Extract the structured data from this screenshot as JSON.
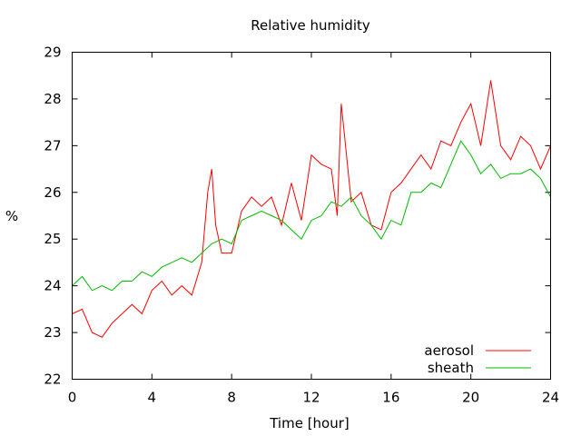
{
  "chart_data": {
    "type": "line",
    "title": "Relative humidity",
    "xlabel": "Time [hour]",
    "ylabel": "%",
    "xlim": [
      0,
      24
    ],
    "ylim": [
      22,
      29
    ],
    "xticks": [
      0,
      4,
      8,
      12,
      16,
      20,
      24
    ],
    "yticks": [
      22,
      23,
      24,
      25,
      26,
      27,
      28,
      29
    ],
    "grid": false,
    "legend_position": "bottom-right",
    "series": [
      {
        "name": "aerosol",
        "color": "#ff0000",
        "x": [
          0,
          0.5,
          1,
          1.5,
          2,
          2.5,
          3,
          3.5,
          4,
          4.5,
          5,
          5.5,
          6,
          6.5,
          6.8,
          7,
          7.2,
          7.5,
          8,
          8.5,
          9,
          9.5,
          10,
          10.5,
          11,
          11.5,
          12,
          12.5,
          13,
          13.3,
          13.5,
          14,
          14.5,
          15,
          15.5,
          16,
          16.5,
          17,
          17.5,
          18,
          18.5,
          19,
          19.5,
          20,
          20.5,
          21,
          21.5,
          22,
          22.5,
          23,
          23.5,
          24
        ],
        "y": [
          23.4,
          23.5,
          23.0,
          22.9,
          23.2,
          23.4,
          23.6,
          23.4,
          23.9,
          24.1,
          23.8,
          24.0,
          23.8,
          24.5,
          26.0,
          26.5,
          25.3,
          24.7,
          24.7,
          25.6,
          25.9,
          25.7,
          25.9,
          25.3,
          26.2,
          25.4,
          26.8,
          26.6,
          26.5,
          25.5,
          27.9,
          25.8,
          26.0,
          25.3,
          25.2,
          26.0,
          26.2,
          26.5,
          26.8,
          26.5,
          27.1,
          27.0,
          27.5,
          27.9,
          27.0,
          28.4,
          27.0,
          26.7,
          27.2,
          27.0,
          26.5,
          27.0
        ]
      },
      {
        "name": "sheath",
        "color": "#00bb00",
        "x": [
          0,
          0.5,
          1,
          1.5,
          2,
          2.5,
          3,
          3.5,
          4,
          4.5,
          5,
          5.5,
          6,
          6.5,
          7,
          7.5,
          8,
          8.5,
          9,
          9.5,
          10,
          10.5,
          11,
          11.5,
          12,
          12.5,
          13,
          13.5,
          14,
          14.5,
          15,
          15.5,
          16,
          16.5,
          17,
          17.5,
          18,
          18.5,
          19,
          19.5,
          20,
          20.5,
          21,
          21.5,
          22,
          22.5,
          23,
          23.5,
          24
        ],
        "y": [
          24.0,
          24.2,
          23.9,
          24.0,
          23.9,
          24.1,
          24.1,
          24.3,
          24.2,
          24.4,
          24.5,
          24.6,
          24.5,
          24.7,
          24.9,
          25.0,
          24.9,
          25.4,
          25.5,
          25.6,
          25.5,
          25.4,
          25.2,
          25.0,
          25.4,
          25.5,
          25.8,
          25.7,
          25.9,
          25.5,
          25.3,
          25.0,
          25.4,
          25.3,
          26.0,
          26.0,
          26.2,
          26.1,
          26.6,
          27.1,
          26.8,
          26.4,
          26.6,
          26.3,
          26.4,
          26.4,
          26.5,
          26.3,
          25.9
        ]
      }
    ]
  }
}
